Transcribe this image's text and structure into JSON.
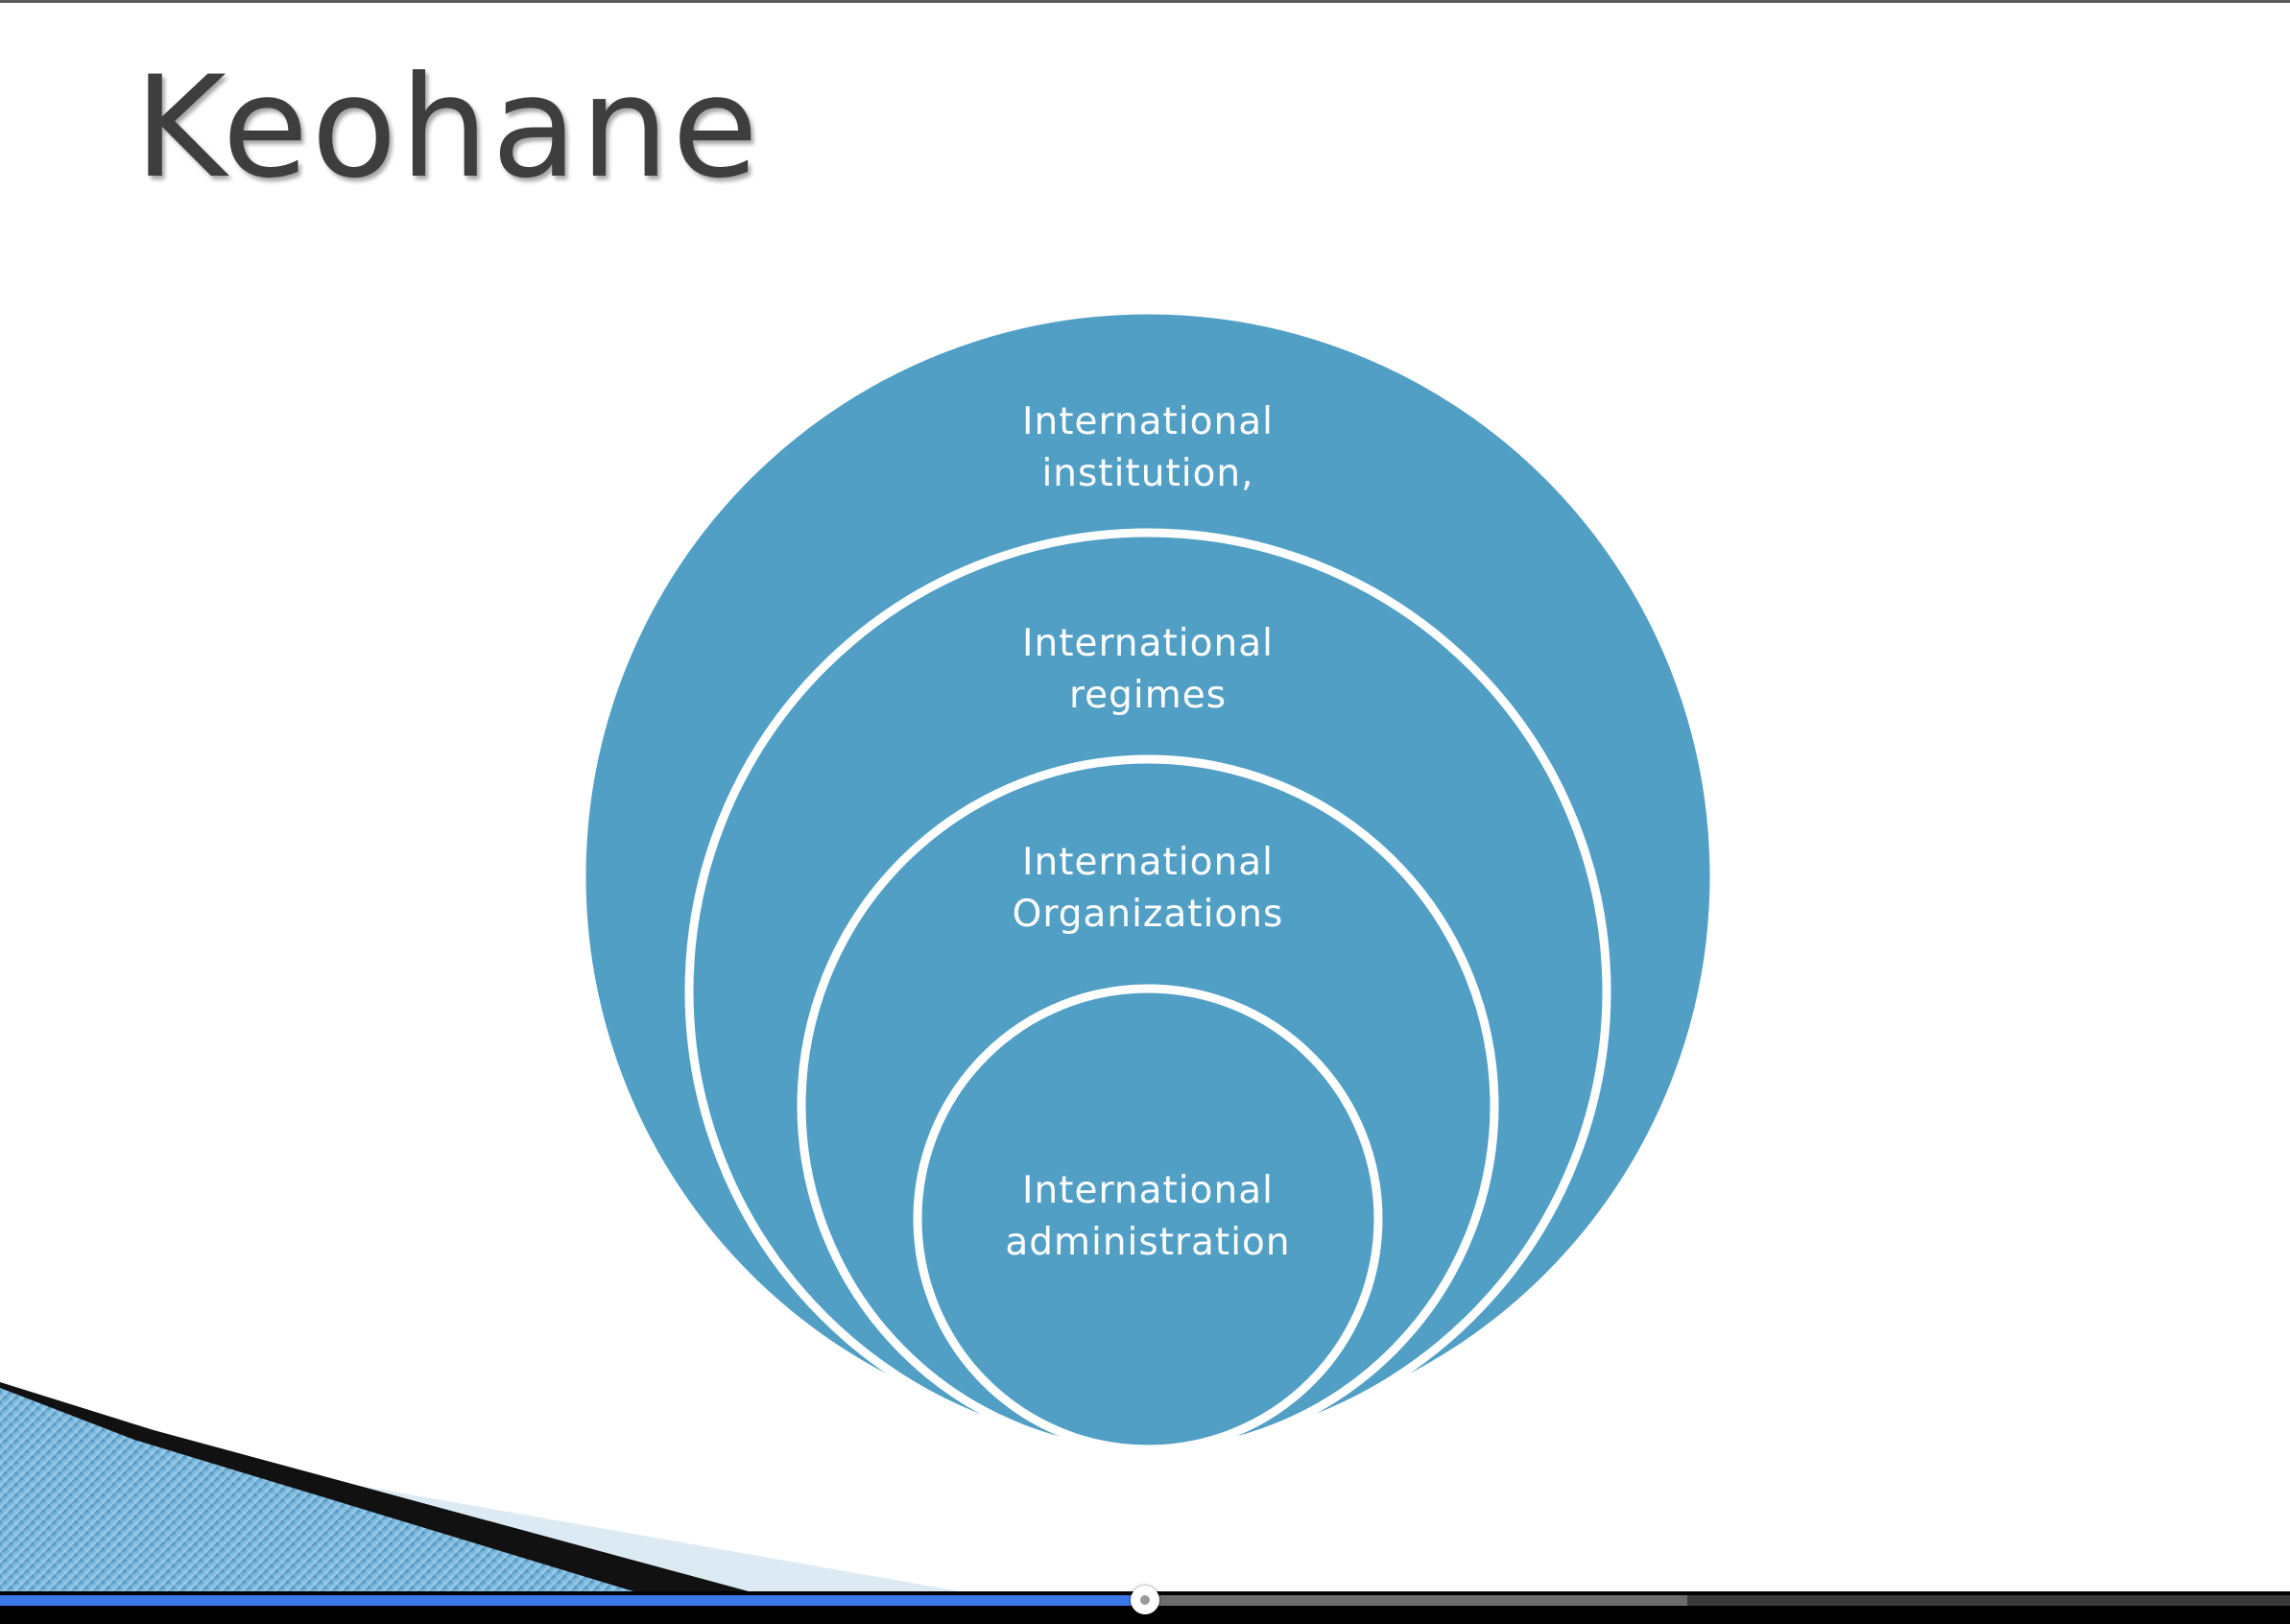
{
  "slide": {
    "title": "Keohane"
  },
  "diagram": {
    "type": "nested-circles",
    "fill_color": "#529fc6",
    "outline_color": "#ffffff",
    "levels": [
      {
        "line1": "International",
        "line2": "institution,"
      },
      {
        "line1": "International",
        "line2": "regimes"
      },
      {
        "line1": "International",
        "line2": "Organizations"
      },
      {
        "line1": "International",
        "line2": "administration"
      }
    ]
  },
  "player": {
    "played_fraction": 0.5,
    "buffered_fraction": 0.737
  }
}
